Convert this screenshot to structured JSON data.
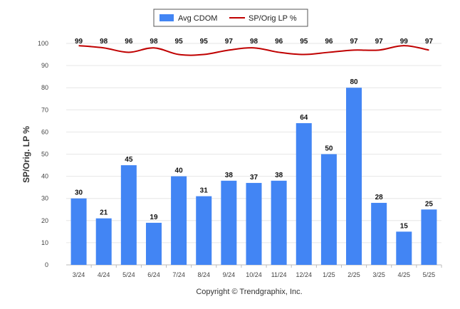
{
  "chart_data": {
    "type": "bar",
    "categories": [
      "3/24",
      "4/24",
      "5/24",
      "6/24",
      "7/24",
      "8/24",
      "9/24",
      "10/24",
      "11/24",
      "12/24",
      "1/25",
      "2/25",
      "3/25",
      "4/25",
      "5/25"
    ],
    "series": [
      {
        "name": "Avg CDOM",
        "type": "bar",
        "color": "#4285f4",
        "values": [
          30,
          21,
          45,
          19,
          40,
          31,
          38,
          37,
          38,
          64,
          50,
          80,
          28,
          15,
          25
        ]
      },
      {
        "name": "SP/Orig LP %",
        "type": "line",
        "color": "#c00000",
        "values": [
          99,
          98,
          96,
          98,
          95,
          95,
          97,
          98,
          96,
          95,
          96,
          97,
          97,
          99,
          97
        ]
      }
    ],
    "ylabel": "SP/Orig. LP %",
    "xlabel": "",
    "ylim": [
      0,
      100
    ],
    "yticks": [
      0,
      10,
      20,
      30,
      40,
      50,
      60,
      70,
      80,
      90,
      100
    ],
    "grid": true,
    "legend_position": "top-center"
  },
  "footer": {
    "copyright": "Copyright © Trendgraphix, Inc."
  }
}
